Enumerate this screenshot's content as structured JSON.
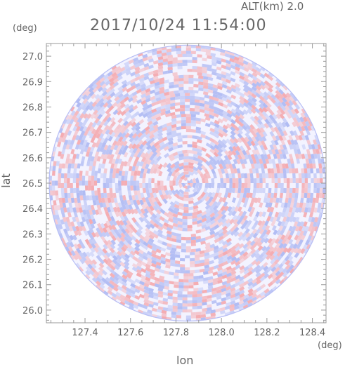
{
  "header": {
    "altitude_label": "ALT(km) 2.0",
    "datetime": "2017/10/24 11:54:00"
  },
  "chart_data": {
    "type": "heatmap",
    "title": "2017/10/24 11:54:00",
    "subtitle": "ALT(km) 2.0",
    "xlabel": "lon",
    "ylabel": "lat",
    "xunit": "(deg)",
    "yunit": "(deg)",
    "xlim": [
      127.23,
      128.46
    ],
    "ylim": [
      25.95,
      27.05
    ],
    "xticks": [
      "127.4",
      "127.6",
      "127.8",
      "128.0",
      "128.2",
      "128.4"
    ],
    "xtick_values": [
      127.4,
      127.6,
      127.8,
      128.0,
      128.2,
      128.4
    ],
    "yticks": [
      "27.0",
      "26.9",
      "26.8",
      "26.7",
      "26.6",
      "26.5",
      "26.4",
      "26.3",
      "26.2",
      "26.1",
      "26.0"
    ],
    "ytick_values": [
      27.0,
      26.9,
      26.8,
      26.7,
      26.6,
      26.5,
      26.4,
      26.3,
      26.2,
      26.1,
      26.0
    ],
    "radar_center": [
      127.85,
      26.5
    ],
    "radar_radius_lat": 0.545,
    "colors": {
      "positive": "#f4a3a8",
      "negative": "#a9b5f2",
      "neutral": "#ffffff",
      "frame": "#999999"
    }
  }
}
